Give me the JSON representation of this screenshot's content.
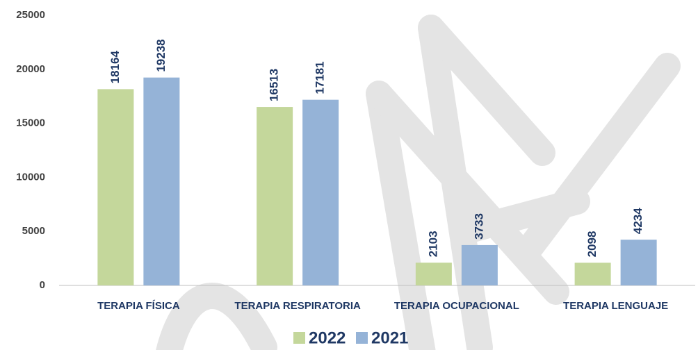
{
  "chart_data": {
    "type": "bar",
    "categories": [
      "TERAPIA FÍSICA",
      "TERAPIA RESPIRATORIA",
      "TERAPIA OCUPACIONAL",
      "TERAPIA LENGUAJE"
    ],
    "series": [
      {
        "name": "2022",
        "color": "#c4d79b",
        "values": [
          18164,
          16513,
          2103,
          2098
        ]
      },
      {
        "name": "2021",
        "color": "#95b3d7",
        "values": [
          19238,
          17181,
          3733,
          4234
        ]
      }
    ],
    "ylim": [
      0,
      25000
    ],
    "yticks": [
      0,
      5000,
      10000,
      15000,
      20000,
      25000
    ],
    "grid": false,
    "legend": "bottom"
  }
}
